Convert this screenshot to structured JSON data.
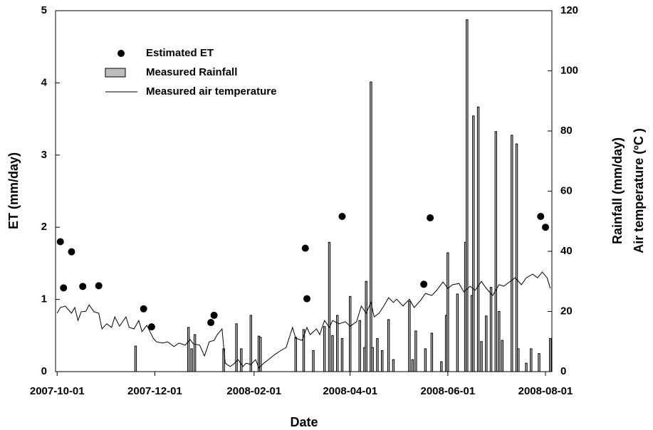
{
  "chart_data": {
    "type": "combo",
    "xlabel": "Date",
    "ylabel": "ET (mm/day)",
    "y2label": [
      "Rainfall (mm/day)",
      "Air temperature (ºC )"
    ],
    "xlim": [
      "2007-09-30",
      "2008-08-05"
    ],
    "xticks": [
      "2007-10-01",
      "2007-12-01",
      "2008-02-01",
      "2008-04-01",
      "2008-06-01",
      "2008-08-01"
    ],
    "ylim": [
      0,
      5
    ],
    "yticks": [
      0,
      1,
      2,
      3,
      4,
      5
    ],
    "y2lim": [
      0,
      120
    ],
    "y2ticks": [
      0,
      20,
      40,
      60,
      80,
      100,
      120
    ],
    "legend": "upper left",
    "series": [
      {
        "name": "Estimated ET",
        "type": "scatter",
        "color": "#000000",
        "x": [
          "2007-10-03",
          "2007-10-05",
          "2007-10-10",
          "2007-10-17",
          "2007-10-27",
          "2007-11-24",
          "2007-11-29",
          "2008-01-05",
          "2008-01-07",
          "2008-03-04",
          "2008-03-05",
          "2008-03-27",
          "2008-05-17",
          "2008-05-21",
          "2008-07-29",
          "2008-08-01"
        ],
        "values": [
          1.8,
          1.16,
          1.66,
          1.18,
          1.19,
          0.87,
          0.62,
          0.68,
          0.78,
          1.71,
          1.01,
          2.15,
          1.21,
          2.13,
          2.15,
          2.0
        ]
      },
      {
        "name": "Measured Rainfall",
        "type": "bar",
        "axis": "y2",
        "color": "#bdbdbd",
        "x": [
          "2007-11-19",
          "2007-12-22",
          "2007-12-24",
          "2007-12-26",
          "2008-01-13",
          "2008-01-21",
          "2008-01-24",
          "2008-01-30",
          "2008-02-04",
          "2008-02-05",
          "2008-02-27",
          "2008-03-03",
          "2008-03-09",
          "2008-03-16",
          "2008-03-19",
          "2008-03-21",
          "2008-03-24",
          "2008-03-27",
          "2008-04-01",
          "2008-04-07",
          "2008-04-10",
          "2008-04-11",
          "2008-04-14",
          "2008-04-15",
          "2008-04-18",
          "2008-04-21",
          "2008-04-25",
          "2008-04-28",
          "2008-05-08",
          "2008-05-10",
          "2008-05-12",
          "2008-05-18",
          "2008-05-22",
          "2008-05-28",
          "2008-05-31",
          "2008-06-01",
          "2008-06-07",
          "2008-06-12",
          "2008-06-13",
          "2008-06-16",
          "2008-06-17",
          "2008-06-20",
          "2008-06-22",
          "2008-06-25",
          "2008-06-28",
          "2008-07-01",
          "2008-07-03",
          "2008-07-05",
          "2008-07-11",
          "2008-07-14",
          "2008-07-15",
          "2008-07-20",
          "2008-07-23",
          "2008-07-28",
          "2008-08-04"
        ],
        "values": [
          8.5,
          14.7,
          7.6,
          12.3,
          7.6,
          15.9,
          7.6,
          18.7,
          11.8,
          11.4,
          11.4,
          14,
          7,
          15,
          43,
          12,
          18.7,
          11,
          25,
          17,
          8,
          30,
          96.3,
          8,
          11,
          7,
          17.3,
          4,
          23.4,
          4,
          13.5,
          7.6,
          12.8,
          3.3,
          18.7,
          39.5,
          25.8,
          43,
          117,
          25.3,
          85,
          88,
          10,
          18.5,
          28,
          79.8,
          20,
          10.4,
          78.6,
          75.7,
          7.6,
          2.8,
          7.6,
          6,
          11
        ]
      },
      {
        "name": "Measured air temperature",
        "type": "line",
        "axis": "y2",
        "color": "#000000",
        "x": [
          "2007-10-01",
          "2007-10-03",
          "2007-10-06",
          "2007-10-10",
          "2007-10-12",
          "2007-10-14",
          "2007-10-16",
          "2007-10-19",
          "2007-10-21",
          "2007-10-24",
          "2007-10-27",
          "2007-10-29",
          "2007-11-01",
          "2007-11-04",
          "2007-11-06",
          "2007-11-09",
          "2007-11-13",
          "2007-11-15",
          "2007-11-18",
          "2007-11-21",
          "2007-11-23",
          "2007-11-26",
          "2007-11-30",
          "2007-12-02",
          "2007-12-06",
          "2007-12-09",
          "2007-12-13",
          "2007-12-16",
          "2007-12-20",
          "2007-12-23",
          "2007-12-25",
          "2007-12-29",
          "2008-01-01",
          "2008-01-04",
          "2008-01-07",
          "2008-01-09",
          "2008-01-12",
          "2008-01-14",
          "2008-01-17",
          "2008-01-19",
          "2008-01-22",
          "2008-01-25",
          "2008-01-27",
          "2008-01-30",
          "2008-02-02",
          "2008-02-04",
          "2008-02-07",
          "2008-02-10",
          "2008-02-14",
          "2008-02-18",
          "2008-02-21",
          "2008-02-25",
          "2008-02-27",
          "2008-03-02",
          "2008-03-05",
          "2008-03-07",
          "2008-03-11",
          "2008-03-13",
          "2008-03-16",
          "2008-03-19",
          "2008-03-21",
          "2008-03-25",
          "2008-03-29",
          "2008-04-01",
          "2008-04-05",
          "2008-04-08",
          "2008-04-11",
          "2008-04-14",
          "2008-04-16",
          "2008-04-19",
          "2008-04-22",
          "2008-04-25",
          "2008-04-28",
          "2008-04-30",
          "2008-05-04",
          "2008-05-08",
          "2008-05-11",
          "2008-05-15",
          "2008-05-18",
          "2008-05-22",
          "2008-05-25",
          "2008-05-29",
          "2008-06-01",
          "2008-06-04",
          "2008-06-08",
          "2008-06-11",
          "2008-06-15",
          "2008-06-18",
          "2008-06-22",
          "2008-06-25",
          "2008-06-29",
          "2008-07-03",
          "2008-07-06",
          "2008-07-10",
          "2008-07-13",
          "2008-07-17",
          "2008-07-20",
          "2008-07-24",
          "2008-07-27",
          "2008-07-30",
          "2008-08-02",
          "2008-08-04"
        ],
        "values": [
          19.4,
          21.3,
          21.8,
          19.4,
          21.3,
          17,
          19.9,
          20.1,
          22.2,
          19.9,
          19.4,
          14.2,
          15.9,
          14.7,
          18.2,
          15.1,
          18.2,
          14.7,
          14.2,
          17,
          13.3,
          15.4,
          11.1,
          9.9,
          9.5,
          9.9,
          8.3,
          9.5,
          8.8,
          10.7,
          9.2,
          8.8,
          5.2,
          9.9,
          10.4,
          12.3,
          14.2,
          2.8,
          1.7,
          2.4,
          4,
          1.7,
          2.8,
          2.4,
          4,
          1.2,
          2.8,
          4,
          5.7,
          7.1,
          8,
          14.7,
          11.1,
          10.4,
          14.7,
          12.3,
          14.2,
          12.3,
          17,
          14.7,
          17,
          15.9,
          16.6,
          15.1,
          16.6,
          21.8,
          19.4,
          23,
          18.2,
          19.4,
          21.8,
          24.6,
          23,
          24.1,
          21.8,
          24.1,
          21.3,
          23.7,
          26,
          25.3,
          27,
          29.8,
          27.7,
          28.9,
          29.3,
          26.5,
          28.4,
          27,
          30,
          27.7,
          25.3,
          28.9,
          28.4,
          30,
          31.2,
          28.9,
          31.2,
          32.4,
          31.2,
          33.1,
          31.2,
          27.7
        ]
      }
    ]
  }
}
